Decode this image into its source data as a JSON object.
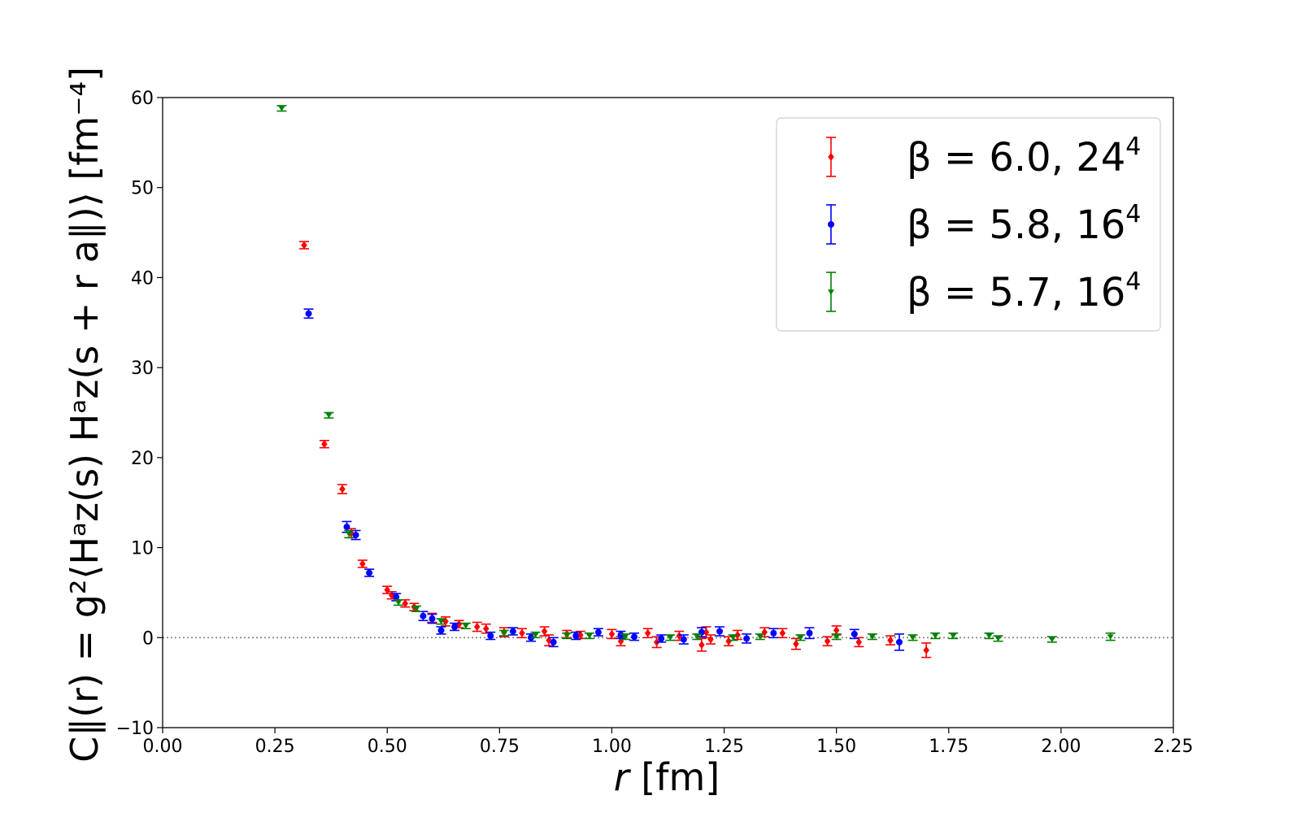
{
  "chart_data": {
    "type": "scatter",
    "xlabel": {
      "italic": "r",
      "rest": " [fm]"
    },
    "ylabel": "C∥(r) = g²⟨Hᵃz(s) Hᵃz(s + r a∥)⟩ [fm⁻⁴]",
    "xlim": [
      0.0,
      2.25
    ],
    "ylim": [
      -10,
      60
    ],
    "x_ticks": [
      "0.00",
      "0.25",
      "0.50",
      "0.75",
      "1.00",
      "1.25",
      "1.50",
      "1.75",
      "2.00",
      "2.25"
    ],
    "y_ticks": [
      "−10",
      "0",
      "10",
      "20",
      "30",
      "40",
      "50",
      "60"
    ],
    "reference_line": {
      "y": 0,
      "style": "dotted",
      "color": "#808080"
    },
    "grid": false,
    "legend_position": "top-right",
    "series": [
      {
        "name": "β = 6.0, 24",
        "name_superscript": "4",
        "color": "#ff0000",
        "marker": "diamond",
        "points": [
          [
            0.315,
            43.6,
            0.4
          ],
          [
            0.36,
            21.5,
            0.4
          ],
          [
            0.4,
            16.5,
            0.5
          ],
          [
            0.42,
            11.6,
            0.5
          ],
          [
            0.445,
            8.2,
            0.4
          ],
          [
            0.5,
            5.3,
            0.4
          ],
          [
            0.51,
            4.7,
            0.4
          ],
          [
            0.54,
            3.8,
            0.4
          ],
          [
            0.56,
            3.4,
            0.4
          ],
          [
            0.6,
            2.2,
            0.5
          ],
          [
            0.63,
            1.8,
            0.5
          ],
          [
            0.66,
            1.5,
            0.4
          ],
          [
            0.7,
            1.2,
            0.5
          ],
          [
            0.72,
            1.0,
            0.5
          ],
          [
            0.76,
            0.6,
            0.5
          ],
          [
            0.8,
            0.5,
            0.5
          ],
          [
            0.85,
            0.7,
            0.5
          ],
          [
            0.86,
            -0.3,
            0.6
          ],
          [
            0.9,
            0.4,
            0.4
          ],
          [
            0.93,
            0.3,
            0.4
          ],
          [
            1.0,
            0.4,
            0.5
          ],
          [
            1.02,
            -0.4,
            0.5
          ],
          [
            1.08,
            0.5,
            0.5
          ],
          [
            1.1,
            -0.5,
            0.6
          ],
          [
            1.15,
            0.2,
            0.5
          ],
          [
            1.2,
            -0.8,
            0.7
          ],
          [
            1.21,
            0.6,
            0.6
          ],
          [
            1.22,
            -0.2,
            0.5
          ],
          [
            1.26,
            -0.4,
            0.5
          ],
          [
            1.28,
            0.3,
            0.5
          ],
          [
            1.34,
            0.6,
            0.5
          ],
          [
            1.38,
            0.5,
            0.5
          ],
          [
            1.41,
            -0.7,
            0.6
          ],
          [
            1.48,
            -0.4,
            0.5
          ],
          [
            1.5,
            0.8,
            0.5
          ],
          [
            1.55,
            -0.5,
            0.5
          ],
          [
            1.62,
            -0.3,
            0.5
          ],
          [
            1.7,
            -1.4,
            0.8
          ]
        ]
      },
      {
        "name": "β = 5.8, 16",
        "name_superscript": "4",
        "color": "#0000ff",
        "marker": "circle",
        "points": [
          [
            0.325,
            36.0,
            0.5
          ],
          [
            0.41,
            12.3,
            0.6
          ],
          [
            0.43,
            11.4,
            0.5
          ],
          [
            0.46,
            7.2,
            0.4
          ],
          [
            0.52,
            4.5,
            0.4
          ],
          [
            0.58,
            2.4,
            0.5
          ],
          [
            0.6,
            2.1,
            0.5
          ],
          [
            0.62,
            0.8,
            0.4
          ],
          [
            0.65,
            1.2,
            0.4
          ],
          [
            0.73,
            0.2,
            0.4
          ],
          [
            0.78,
            0.7,
            0.4
          ],
          [
            0.82,
            0.0,
            0.4
          ],
          [
            0.87,
            -0.5,
            0.5
          ],
          [
            0.92,
            0.2,
            0.4
          ],
          [
            0.97,
            0.6,
            0.4
          ],
          [
            1.02,
            0.3,
            0.4
          ],
          [
            1.05,
            0.1,
            0.4
          ],
          [
            1.11,
            -0.1,
            0.4
          ],
          [
            1.16,
            -0.2,
            0.5
          ],
          [
            1.2,
            0.6,
            0.5
          ],
          [
            1.24,
            0.7,
            0.5
          ],
          [
            1.3,
            -0.1,
            0.5
          ],
          [
            1.36,
            0.5,
            0.5
          ],
          [
            1.44,
            0.5,
            0.6
          ],
          [
            1.54,
            0.4,
            0.5
          ],
          [
            1.64,
            -0.5,
            0.9
          ]
        ]
      },
      {
        "name": "β = 5.7, 16",
        "name_superscript": "4",
        "color": "#008000",
        "marker": "triangle-down",
        "points": [
          [
            0.265,
            58.8,
            0.3
          ],
          [
            0.37,
            24.7,
            0.3
          ],
          [
            0.415,
            11.5,
            0.4
          ],
          [
            0.525,
            3.9,
            0.3
          ],
          [
            0.565,
            3.2,
            0.3
          ],
          [
            0.62,
            1.8,
            0.3
          ],
          [
            0.675,
            1.3,
            0.3
          ],
          [
            0.76,
            0.5,
            0.3
          ],
          [
            0.83,
            0.3,
            0.3
          ],
          [
            0.9,
            0.2,
            0.3
          ],
          [
            0.95,
            0.2,
            0.3
          ],
          [
            1.03,
            0.1,
            0.3
          ],
          [
            1.13,
            0.0,
            0.3
          ],
          [
            1.19,
            0.1,
            0.3
          ],
          [
            1.27,
            0.0,
            0.3
          ],
          [
            1.33,
            0.1,
            0.3
          ],
          [
            1.42,
            0.0,
            0.3
          ],
          [
            1.5,
            0.1,
            0.3
          ],
          [
            1.58,
            0.1,
            0.3
          ],
          [
            1.67,
            0.0,
            0.3
          ],
          [
            1.72,
            0.2,
            0.3
          ],
          [
            1.76,
            0.2,
            0.3
          ],
          [
            1.84,
            0.2,
            0.3
          ],
          [
            1.86,
            -0.1,
            0.3
          ],
          [
            1.98,
            -0.2,
            0.3
          ],
          [
            2.11,
            0.1,
            0.4
          ]
        ]
      }
    ]
  }
}
